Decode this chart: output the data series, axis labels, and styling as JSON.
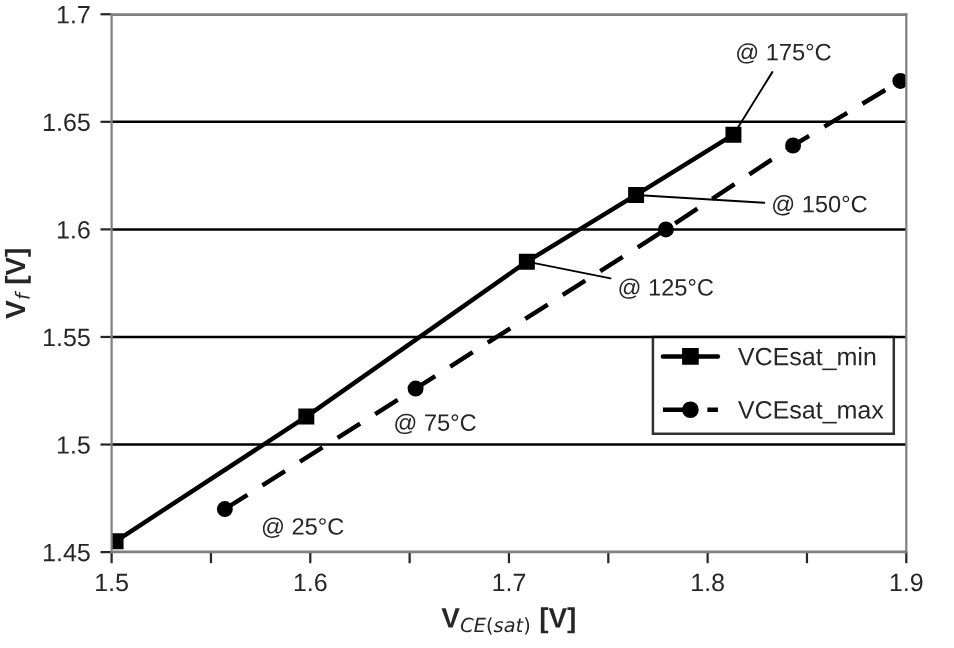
{
  "chart_data": {
    "type": "line",
    "xlabel": "V$_{CE(sat)}$ [V]",
    "ylabel": "V$_{f}$ [V]",
    "xlim": [
      1.5,
      1.9
    ],
    "xticks": [
      1.5,
      {
        "value": 1.55,
        "label": null
      },
      1.6,
      {
        "value": 1.65,
        "label": null
      },
      1.7,
      {
        "value": 1.75,
        "label": null
      },
      1.8,
      {
        "value": 1.85,
        "label": null
      },
      1.9
    ],
    "ylim": [
      1.45,
      1.7
    ],
    "yticks": [
      1.45,
      1.5,
      1.55,
      1.6,
      1.65,
      1.7
    ],
    "grid": "y",
    "legend": "right",
    "series": [
      {
        "name": "VCEsat_min",
        "color": "#000000",
        "marker": "square",
        "line_style": "solid",
        "x": [
          1.502,
          1.598,
          1.709,
          1.764,
          1.813
        ],
        "values": [
          1.455,
          1.513,
          1.585,
          1.616,
          1.644
        ]
      },
      {
        "name": "VCEsat_max",
        "color": "#000000",
        "marker": "circle",
        "line_style": "dashed",
        "x": [
          1.557,
          1.653,
          1.779,
          1.843,
          1.897
        ],
        "values": [
          1.47,
          1.526,
          1.6,
          1.639,
          1.669
        ]
      }
    ],
    "annotations": [
      {
        "text": "@ 25°C",
        "x": 1.557,
        "y": 1.47
      },
      {
        "text": "@ 75°C",
        "x": 1.653,
        "y": 1.526
      },
      {
        "text": "@ 125°C",
        "x": 1.709,
        "y": 1.585
      },
      {
        "text": "@ 150°C",
        "x": 1.764,
        "y": 1.616
      },
      {
        "text": "@ 175°C",
        "x": 1.813,
        "y": 1.644
      }
    ]
  }
}
